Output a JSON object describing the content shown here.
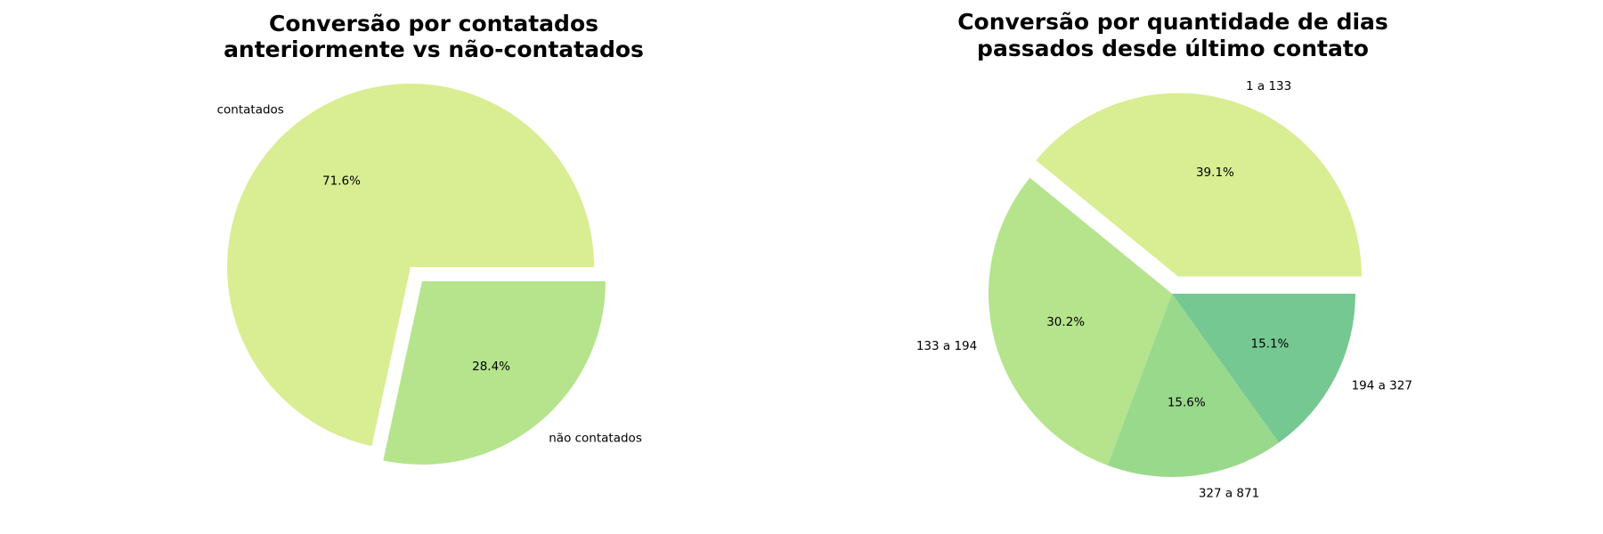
{
  "chart_data": [
    {
      "type": "pie",
      "title": [
        "Conversão por contatados",
        "anteriormente vs não-contatados"
      ],
      "categories": [
        "contatados",
        "não contatados"
      ],
      "values": [
        71.6,
        28.4
      ],
      "value_labels": [
        "71.6%",
        "28.4%"
      ],
      "colors": [
        "#d9ed92",
        "#b5e48c"
      ],
      "explode": [
        0.1,
        0.0
      ],
      "startangle": 0,
      "direction": "counterclockwise"
    },
    {
      "type": "pie",
      "title": [
        "Conversão por quantidade de dias",
        "passados desde último contato"
      ],
      "categories": [
        "1 a 133",
        "133 a 194",
        "327 a 871",
        "194 a 327"
      ],
      "values": [
        39.1,
        30.2,
        15.6,
        15.1
      ],
      "value_labels": [
        "39.1%",
        "30.2%",
        "15.6%",
        "15.1%"
      ],
      "colors": [
        "#d9ed92",
        "#b5e48c",
        "#99d98c",
        "#76c893"
      ],
      "explode": [
        0.1,
        0.0,
        0.0,
        0.0
      ],
      "startangle": 0,
      "direction": "counterclockwise"
    }
  ]
}
